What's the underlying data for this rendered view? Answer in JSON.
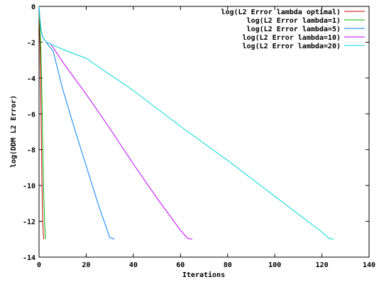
{
  "chart_data": {
    "type": "line",
    "title": "",
    "xlabel": "Iterations",
    "ylabel": "log(DDM L2 Error)",
    "xlim": [
      0,
      140
    ],
    "ylim": [
      -14,
      0
    ],
    "xticks": [
      "0",
      "20",
      "40",
      "60",
      "80",
      "100",
      "120",
      "140"
    ],
    "yticks": [
      "0",
      "-2",
      "-4",
      "-6",
      "-8",
      "-10",
      "-12",
      "-14"
    ],
    "grid": false,
    "legend_position": "top-right",
    "series": [
      {
        "name": "log(L2 Error lambda optimal)",
        "color": "#cc0000",
        "points": [
          [
            0,
            -0.5
          ],
          [
            0.3,
            -1.5
          ],
          [
            0.6,
            -3.5
          ],
          [
            0.9,
            -6.5
          ],
          [
            1.2,
            -9.5
          ],
          [
            1.5,
            -11.8
          ],
          [
            1.8,
            -12.7
          ],
          [
            2.0,
            -13.0
          ]
        ]
      },
      {
        "name": "log(L2 Error lambda=1)",
        "color": "#00b000",
        "points": [
          [
            0,
            -0.3
          ],
          [
            0.4,
            -1.2
          ],
          [
            0.8,
            -2.5
          ],
          [
            1.2,
            -5.0
          ],
          [
            1.6,
            -8.0
          ],
          [
            2.0,
            -10.5
          ],
          [
            2.4,
            -12.3
          ],
          [
            2.8,
            -13.0
          ]
        ]
      },
      {
        "name": "log(L2 Error lambda=5)",
        "color": "#0080ff",
        "points": [
          [
            0,
            0
          ],
          [
            0.3,
            -0.6
          ],
          [
            0.8,
            -1.3
          ],
          [
            1.5,
            -1.7
          ],
          [
            3,
            -2.0
          ],
          [
            6,
            -2.5
          ],
          [
            10,
            -4.6
          ],
          [
            15,
            -6.8
          ],
          [
            20,
            -8.9
          ],
          [
            25,
            -11.0
          ],
          [
            30,
            -12.9
          ],
          [
            31,
            -12.95
          ],
          [
            32,
            -13.0
          ]
        ]
      },
      {
        "name": "log(L2 Error lambda=10)",
        "color": "#c000ff",
        "points": [
          [
            0,
            0
          ],
          [
            0.3,
            -0.6
          ],
          [
            0.8,
            -1.3
          ],
          [
            1.5,
            -1.7
          ],
          [
            3,
            -2.0
          ],
          [
            5,
            -2.1
          ],
          [
            10,
            -3.1
          ],
          [
            20,
            -4.9
          ],
          [
            30,
            -6.8
          ],
          [
            40,
            -8.8
          ],
          [
            50,
            -10.7
          ],
          [
            60,
            -12.5
          ],
          [
            63,
            -12.95
          ],
          [
            65,
            -13.0
          ]
        ]
      },
      {
        "name": "log(L2 Error lambda=20)",
        "color": "#00d8d8",
        "points": [
          [
            0,
            0
          ],
          [
            0.3,
            -0.6
          ],
          [
            0.8,
            -1.3
          ],
          [
            1.5,
            -1.7
          ],
          [
            3,
            -2.0
          ],
          [
            5,
            -2.1
          ],
          [
            10,
            -2.4
          ],
          [
            20,
            -2.9
          ],
          [
            30,
            -3.8
          ],
          [
            40,
            -4.7
          ],
          [
            60,
            -6.7
          ],
          [
            80,
            -8.6
          ],
          [
            100,
            -10.6
          ],
          [
            120,
            -12.6
          ],
          [
            123,
            -12.95
          ],
          [
            125,
            -13.0
          ]
        ]
      }
    ]
  }
}
